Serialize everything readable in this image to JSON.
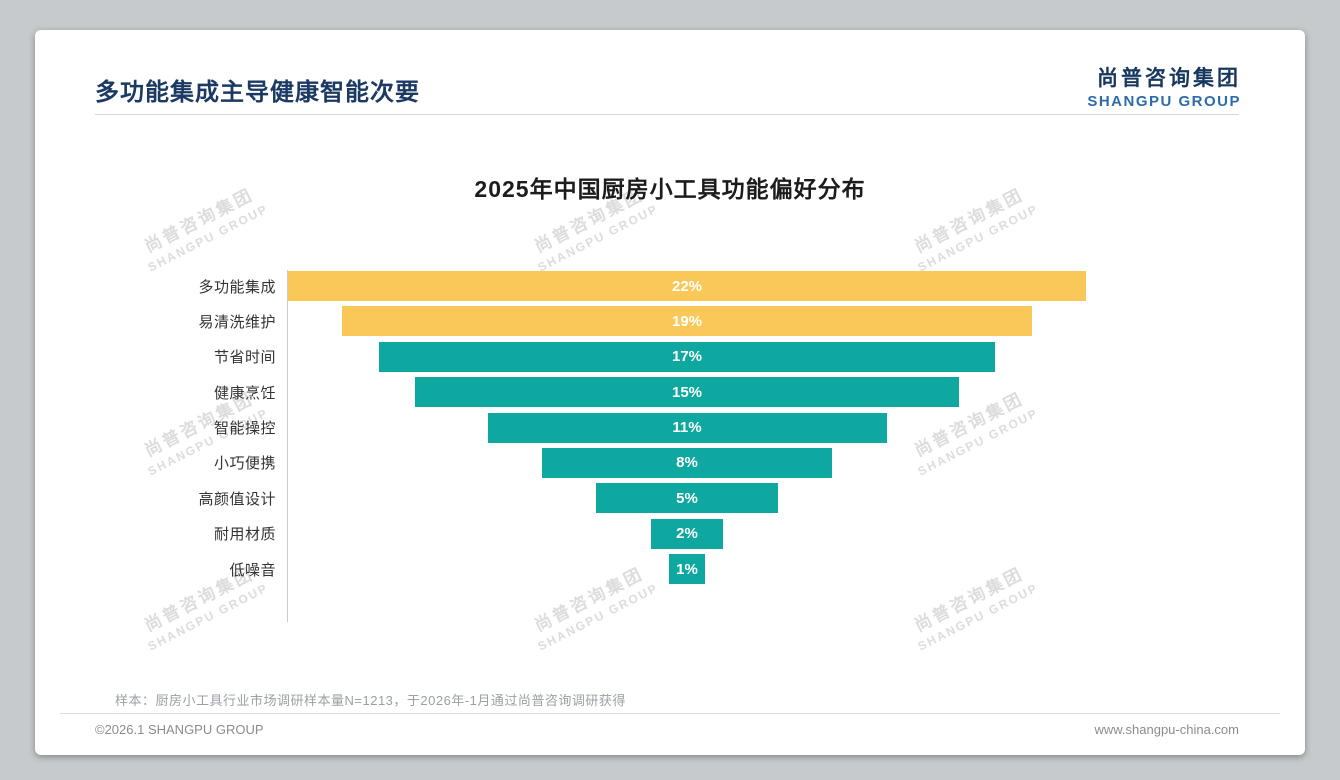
{
  "page": {
    "title": "多功能集成主导健康智能次要",
    "logo": {
      "cn": "尚普咨询集团",
      "en": "SHANGPU GROUP"
    },
    "watermark": {
      "cn": "尚普咨询集团",
      "en": "SHANGPU GROUP"
    },
    "footnote": "样本：厨房小工具行业市场调研样本量N=1213，于2026年-1月通过尚普咨询调研获得",
    "footer": {
      "copyright": "©2026.1 SHANGPU GROUP",
      "website": "www.shangpu-china.com"
    }
  },
  "chart_data": {
    "type": "bar",
    "variant": "horizontal-centered-funnel",
    "title": "2025年中国厨房小工具功能偏好分布",
    "categories": [
      "多功能集成",
      "易清洗维护",
      "节省时间",
      "健康烹饪",
      "智能操控",
      "小巧便携",
      "高颜值设计",
      "耐用材质",
      "低噪音"
    ],
    "values": [
      22,
      19,
      17,
      15,
      11,
      8,
      5,
      2,
      1
    ],
    "value_labels": [
      "22%",
      "19%",
      "17%",
      "15%",
      "11%",
      "8%",
      "5%",
      "2%",
      "1%"
    ],
    "unit": "%",
    "xlim": [
      0,
      22
    ],
    "grid": false,
    "legend": false,
    "bar_colors": [
      "#FAC858",
      "#FAC858",
      "#0FA8A1",
      "#0FA8A1",
      "#0FA8A1",
      "#0FA8A1",
      "#0FA8A1",
      "#0FA8A1",
      "#0FA8A1"
    ],
    "highlight_color": "#FAC858",
    "base_color": "#0FA8A1",
    "value_label_color": "#FFFFFF"
  },
  "colors": {
    "title_navy": "#1B3A63",
    "logo_blue": "#2E6BAD",
    "divider_gray": "#D6D6D6",
    "footnote_gray": "#9AA0A6"
  }
}
